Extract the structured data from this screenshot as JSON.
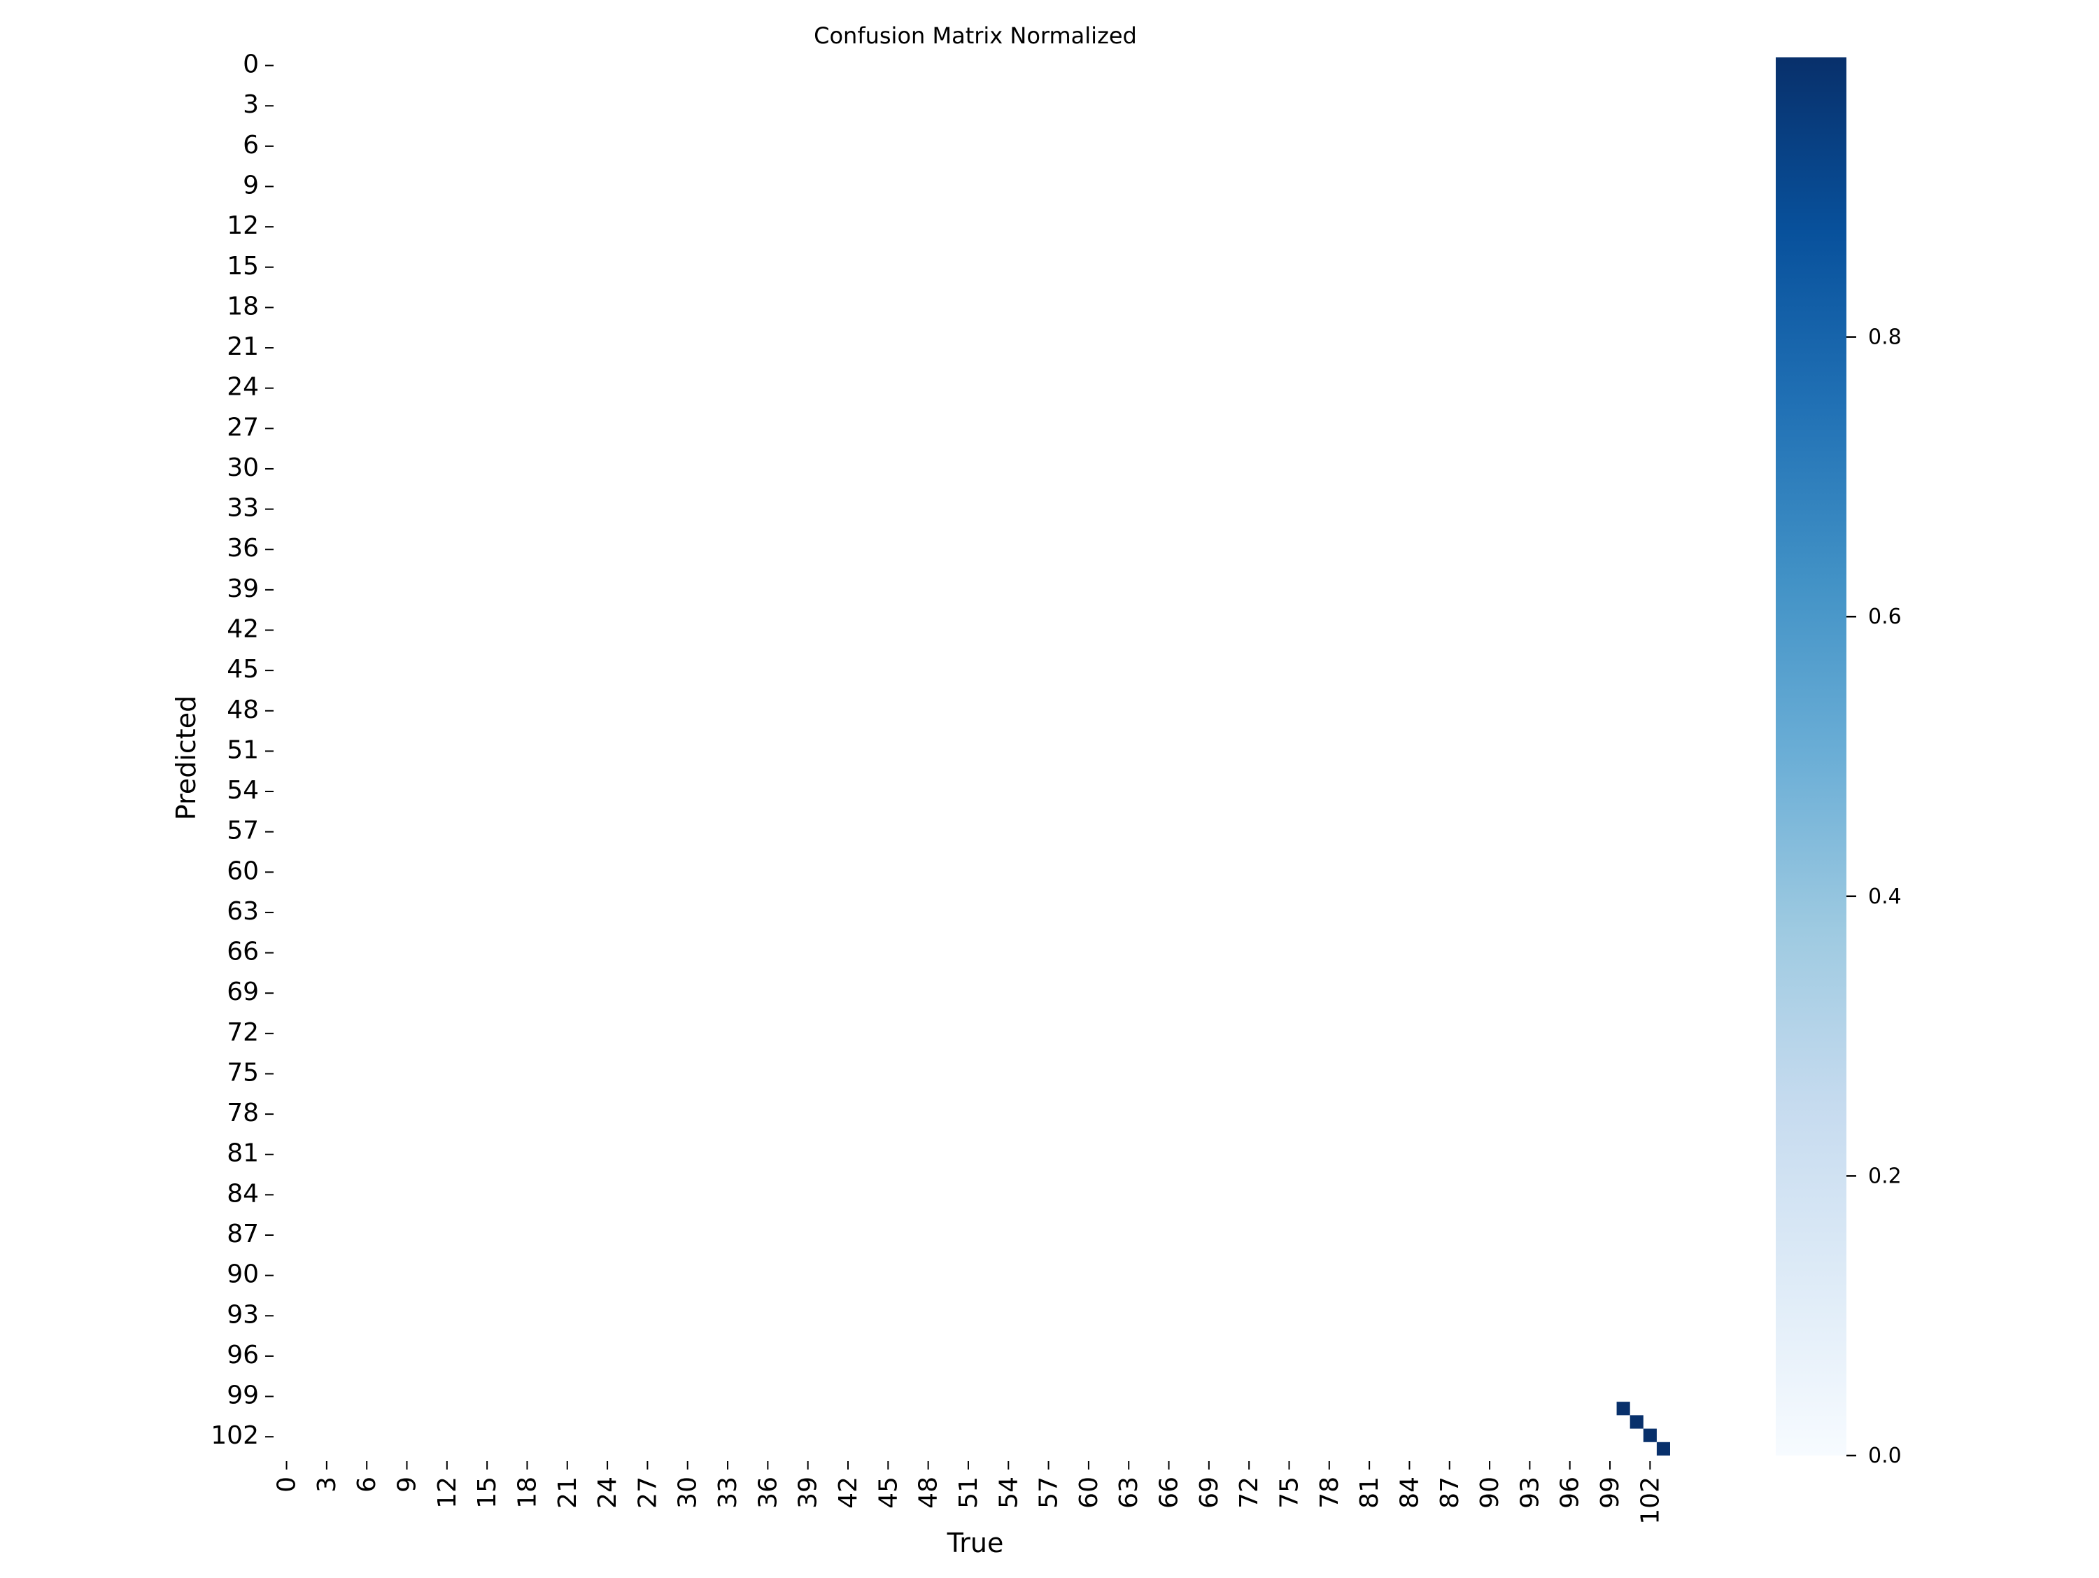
{
  "chart_data": {
    "type": "heatmap",
    "title": "Confusion Matrix Normalized",
    "xlabel": "True",
    "ylabel": "Predicted",
    "n_classes": 104,
    "x_tick_labels": [
      "0",
      "3",
      "6",
      "9",
      "12",
      "15",
      "18",
      "21",
      "24",
      "27",
      "30",
      "33",
      "36",
      "39",
      "42",
      "45",
      "48",
      "51",
      "54",
      "57",
      "60",
      "63",
      "66",
      "69",
      "72",
      "75",
      "78",
      "81",
      "84",
      "87",
      "90",
      "93",
      "96",
      "99",
      "102"
    ],
    "y_tick_labels": [
      "0",
      "3",
      "6",
      "9",
      "12",
      "15",
      "18",
      "21",
      "24",
      "27",
      "30",
      "33",
      "36",
      "39",
      "42",
      "45",
      "48",
      "51",
      "54",
      "57",
      "60",
      "63",
      "66",
      "69",
      "72",
      "75",
      "78",
      "81",
      "84",
      "87",
      "90",
      "93",
      "96",
      "99",
      "102"
    ],
    "nonzero_cells": [
      {
        "true": 100,
        "predicted": 100,
        "value": 1.0
      },
      {
        "true": 101,
        "predicted": 101,
        "value": 1.0
      },
      {
        "true": 102,
        "predicted": 102,
        "value": 1.0
      },
      {
        "true": 103,
        "predicted": 103,
        "value": 1.0
      }
    ],
    "default_value": 0.0,
    "colorbar": {
      "colormap": "Blues",
      "range": [
        0.0,
        1.0
      ],
      "ticks": [
        {
          "value": 0.0,
          "label": "0.0"
        },
        {
          "value": 0.2,
          "label": "0.2"
        },
        {
          "value": 0.4,
          "label": "0.4"
        },
        {
          "value": 0.6,
          "label": "0.6"
        },
        {
          "value": 0.8,
          "label": "0.8"
        }
      ],
      "colors": [
        "#f7fbff",
        "#deebf7",
        "#c6dbef",
        "#9ecae1",
        "#6baed6",
        "#4292c6",
        "#2171b5",
        "#08519c",
        "#08306b"
      ]
    }
  }
}
